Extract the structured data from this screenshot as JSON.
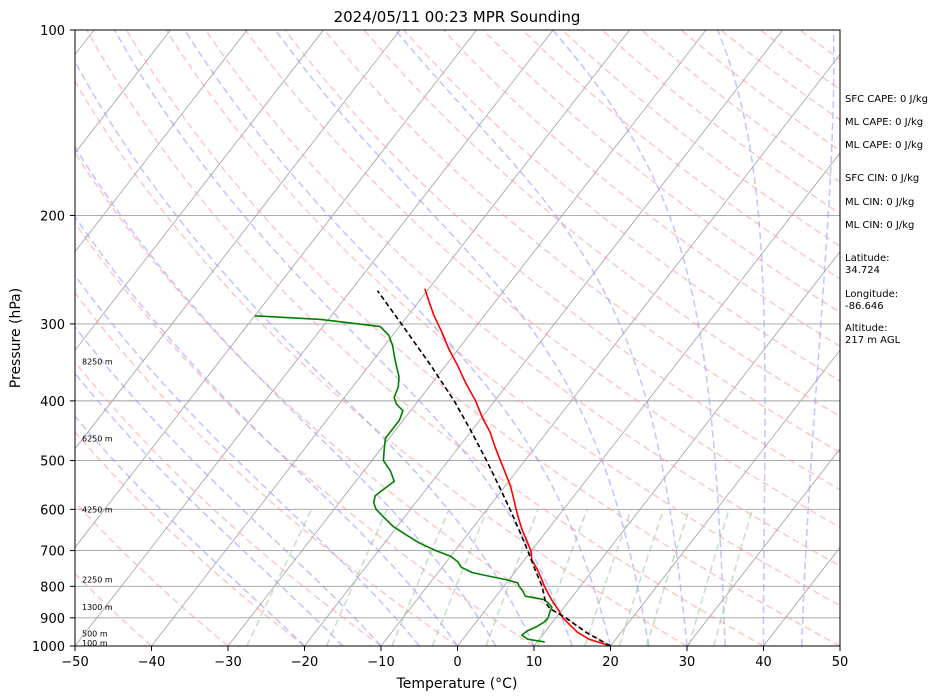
{
  "chart_data": {
    "type": "line",
    "title": "2024/05/11 00:23 MPR Sounding",
    "xlabel": "Temperature (°C)",
    "ylabel": "Pressure (hPa)",
    "xlim": [
      -50,
      50
    ],
    "ylim": [
      1000,
      100
    ],
    "y_scale": "log",
    "x_ticks": [
      -50,
      -40,
      -30,
      -20,
      -10,
      0,
      10,
      20,
      30,
      40,
      50
    ],
    "x_tick_labels": [
      "−50",
      "−40",
      "−30",
      "−20",
      "−10",
      "0",
      "10",
      "20",
      "30",
      "40",
      "50"
    ],
    "y_ticks": [
      1000,
      900,
      800,
      700,
      600,
      500,
      400,
      300,
      200,
      100
    ],
    "y_tick_labels": [
      "1000",
      "900",
      "800",
      "700",
      "600",
      "500",
      "400",
      "300",
      "200",
      "100"
    ],
    "grid": "horizontal at pressure ticks",
    "skew": "skew-T log-P",
    "series": [
      {
        "role": "temperature",
        "color": "#ff0000",
        "points": [
          [
            1000,
            20.0
          ],
          [
            975,
            16.5
          ],
          [
            950,
            14.3
          ],
          [
            925,
            12.6
          ],
          [
            900,
            10.9
          ],
          [
            875,
            9.6
          ],
          [
            850,
            8.1
          ],
          [
            825,
            6.7
          ],
          [
            800,
            5.3
          ],
          [
            775,
            4.0
          ],
          [
            750,
            2.6
          ],
          [
            725,
            1.0
          ],
          [
            700,
            -0.1
          ],
          [
            675,
            -1.6
          ],
          [
            650,
            -3.2
          ],
          [
            625,
            -4.7
          ],
          [
            600,
            -6.2
          ],
          [
            575,
            -7.7
          ],
          [
            550,
            -9.3
          ],
          [
            525,
            -11.2
          ],
          [
            500,
            -13.2
          ],
          [
            475,
            -15.3
          ],
          [
            450,
            -17.4
          ],
          [
            425,
            -20.0
          ],
          [
            400,
            -22.5
          ],
          [
            375,
            -25.5
          ],
          [
            350,
            -28.5
          ],
          [
            330,
            -31.2
          ],
          [
            310,
            -33.8
          ],
          [
            290,
            -36.7
          ],
          [
            275,
            -38.8
          ],
          [
            263,
            -40.5
          ]
        ]
      },
      {
        "role": "dewpoint",
        "color": "#008000",
        "points": [
          [
            985,
            11.0
          ],
          [
            975,
            8.5
          ],
          [
            960,
            7.3
          ],
          [
            945,
            7.6
          ],
          [
            930,
            8.4
          ],
          [
            915,
            8.9
          ],
          [
            900,
            9.0
          ],
          [
            880,
            8.6
          ],
          [
            865,
            8.4
          ],
          [
            850,
            7.4
          ],
          [
            840,
            6.5
          ],
          [
            830,
            3.8
          ],
          [
            815,
            3.0
          ],
          [
            800,
            2.0
          ],
          [
            790,
            1.5
          ],
          [
            780,
            -0.5
          ],
          [
            770,
            -3.0
          ],
          [
            760,
            -5.5
          ],
          [
            745,
            -7.5
          ],
          [
            730,
            -8.5
          ],
          [
            715,
            -10.0
          ],
          [
            700,
            -12.5
          ],
          [
            680,
            -15.5
          ],
          [
            660,
            -18.0
          ],
          [
            640,
            -20.5
          ],
          [
            620,
            -22.5
          ],
          [
            600,
            -24.5
          ],
          [
            585,
            -25.5
          ],
          [
            570,
            -26.0
          ],
          [
            555,
            -25.5
          ],
          [
            540,
            -25.0
          ],
          [
            520,
            -26.5
          ],
          [
            500,
            -28.5
          ],
          [
            480,
            -29.5
          ],
          [
            460,
            -30.5
          ],
          [
            445,
            -30.5
          ],
          [
            430,
            -30.5
          ],
          [
            415,
            -31.0
          ],
          [
            405,
            -32.5
          ],
          [
            395,
            -33.5
          ],
          [
            380,
            -34.0
          ],
          [
            365,
            -35.0
          ],
          [
            355,
            -36.0
          ],
          [
            340,
            -37.5
          ],
          [
            325,
            -39.0
          ],
          [
            313,
            -40.5
          ],
          [
            303,
            -42.5
          ],
          [
            295,
            -51.0
          ],
          [
            291,
            -60.0
          ]
        ]
      },
      {
        "role": "parcel path",
        "color": "#000000",
        "style": "dashed",
        "points": [
          [
            1000,
            20.0
          ],
          [
            950,
            15.4
          ],
          [
            900,
            11.3
          ],
          [
            870,
            8.3
          ],
          [
            850,
            7.1
          ],
          [
            800,
            5.0
          ],
          [
            750,
            2.3
          ],
          [
            700,
            -0.5
          ],
          [
            650,
            -3.6
          ],
          [
            600,
            -7.0
          ],
          [
            550,
            -10.8
          ],
          [
            500,
            -15.0
          ],
          [
            450,
            -19.8
          ],
          [
            400,
            -25.3
          ],
          [
            350,
            -32.0
          ],
          [
            300,
            -40.0
          ],
          [
            265,
            -46.5
          ]
        ]
      }
    ],
    "height_labels": [
      {
        "p": 988,
        "label": "100 m"
      },
      {
        "p": 955,
        "label": "500 m"
      },
      {
        "p": 865,
        "label": "1300 m"
      },
      {
        "p": 780,
        "label": "2250 m"
      },
      {
        "p": 600,
        "label": "4250 m"
      },
      {
        "p": 460,
        "label": "6250 m"
      },
      {
        "p": 345,
        "label": "8250 m"
      }
    ],
    "indices": [
      "SFC CAPE: 0 J/kg",
      "ML CAPE: 0 J/kg",
      "ML CAPE: 0 J/kg",
      "SFC CIN: 0 J/kg",
      "ML CIN: 0 J/kg",
      "ML CIN: 0 J/kg"
    ],
    "location": [
      {
        "label": "Latitude:",
        "value": "34.724"
      },
      {
        "label": "Longitude:",
        "value": "-86.646"
      },
      {
        "label": "Altitude:",
        "value": "217 m AGL"
      }
    ],
    "colors": {
      "temperature": "#ff0000",
      "dewpoint": "#008000",
      "parcel": "#000000",
      "dry_adiabats": "#ff9999",
      "moist_adiabats": "#9999ff",
      "mixing_ratio": "#99cc99",
      "isotherms": "#a0a0a0",
      "isobars": "#a0a0a0"
    }
  }
}
